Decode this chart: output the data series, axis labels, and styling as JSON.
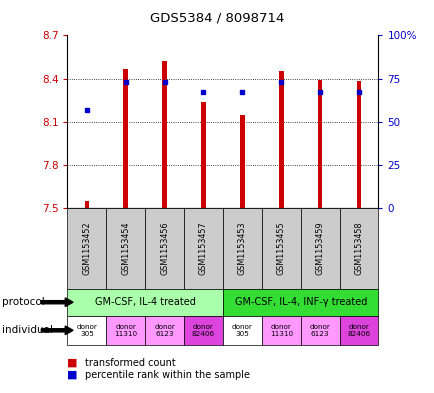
{
  "title": "GDS5384 / 8098714",
  "samples": [
    "GSM1153452",
    "GSM1153454",
    "GSM1153456",
    "GSM1153457",
    "GSM1153453",
    "GSM1153455",
    "GSM1153459",
    "GSM1153458"
  ],
  "transformed_count": [
    7.55,
    8.47,
    8.52,
    8.24,
    8.15,
    8.45,
    8.39,
    8.38
  ],
  "percentile_rank": [
    57,
    73,
    73,
    67,
    67,
    73,
    67,
    67
  ],
  "ylim_left": [
    7.5,
    8.7
  ],
  "ylim_right": [
    0,
    100
  ],
  "yticks_left": [
    7.5,
    7.8,
    8.1,
    8.4,
    8.7
  ],
  "yticks_right": [
    0,
    25,
    50,
    75,
    100
  ],
  "ytick_labels_left": [
    "7.5",
    "7.8",
    "8.1",
    "8.4",
    "8.7"
  ],
  "ytick_labels_right": [
    "0",
    "25",
    "50",
    "75",
    "100%"
  ],
  "bar_color": "#cc0000",
  "dot_color": "#0000cc",
  "bar_baseline": 7.5,
  "protocol_groups": [
    {
      "label": "GM-CSF, IL-4 treated",
      "start": 0,
      "end": 3,
      "color": "#aaffaa"
    },
    {
      "label": "GM-CSF, IL-4, INF-γ treated",
      "start": 4,
      "end": 7,
      "color": "#33dd33"
    }
  ],
  "ind_colors": [
    "#ffffff",
    "#ff99ff",
    "#ff99ff",
    "#dd44dd",
    "#ffffff",
    "#ff99ff",
    "#ff99ff",
    "#dd44dd"
  ],
  "ind_labels": [
    "donor\n305",
    "donor\n11310",
    "donor\n6123",
    "donor\n82406",
    "donor\n305",
    "donor\n11310",
    "donor\n6123",
    "donor\n82406"
  ],
  "sample_box_color": "#cccccc",
  "bg_color": "#ffffff",
  "label_protocol": "protocol",
  "label_individual": "individual",
  "bar_width": 0.12
}
